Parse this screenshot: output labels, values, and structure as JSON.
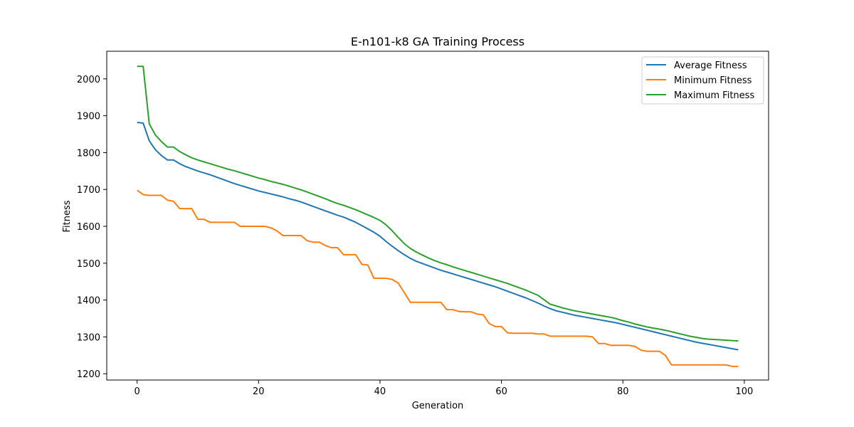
{
  "chart_data": {
    "type": "line",
    "title": "E-n101-k8 GA  Training Process",
    "xlabel": "Generation",
    "ylabel": "Fitness",
    "xlim": [
      -5,
      104
    ],
    "ylim": [
      1183,
      2075
    ],
    "xticks": [
      0,
      20,
      40,
      60,
      80,
      100
    ],
    "yticks": [
      1200,
      1300,
      1400,
      1500,
      1600,
      1700,
      1800,
      1900,
      2000
    ],
    "grid": false,
    "legend_position": "top-right",
    "x": [
      0,
      1,
      2,
      3,
      4,
      5,
      6,
      7,
      8,
      9,
      10,
      11,
      12,
      13,
      14,
      15,
      16,
      17,
      18,
      19,
      20,
      21,
      22,
      23,
      24,
      25,
      26,
      27,
      28,
      29,
      30,
      31,
      32,
      33,
      34,
      35,
      36,
      37,
      38,
      39,
      40,
      41,
      42,
      43,
      44,
      45,
      46,
      47,
      48,
      49,
      50,
      51,
      52,
      53,
      54,
      55,
      56,
      57,
      58,
      59,
      60,
      61,
      62,
      63,
      64,
      65,
      66,
      67,
      68,
      69,
      70,
      71,
      72,
      73,
      74,
      75,
      76,
      77,
      78,
      79,
      80,
      81,
      82,
      83,
      84,
      85,
      86,
      87,
      88,
      89,
      90,
      91,
      92,
      93,
      94,
      95,
      96,
      97,
      98,
      99
    ],
    "series": [
      {
        "name": "Average Fitness",
        "color": "#1f77b4",
        "values": [
          1882,
          1880,
          1832,
          1808,
          1792,
          1780,
          1780,
          1770,
          1762,
          1756,
          1750,
          1745,
          1740,
          1734,
          1728,
          1722,
          1716,
          1711,
          1706,
          1701,
          1696,
          1692,
          1688,
          1684,
          1680,
          1675,
          1671,
          1666,
          1660,
          1654,
          1648,
          1642,
          1636,
          1630,
          1625,
          1618,
          1611,
          1602,
          1593,
          1584,
          1573,
          1559,
          1546,
          1534,
          1523,
          1513,
          1505,
          1499,
          1493,
          1487,
          1481,
          1476,
          1471,
          1466,
          1461,
          1456,
          1451,
          1446,
          1441,
          1436,
          1430,
          1424,
          1418,
          1412,
          1406,
          1399,
          1392,
          1384,
          1377,
          1371,
          1367,
          1363,
          1359,
          1356,
          1353,
          1350,
          1347,
          1344,
          1341,
          1338,
          1334,
          1330,
          1326,
          1322,
          1318,
          1314,
          1310,
          1306,
          1302,
          1298,
          1294,
          1290,
          1286,
          1283,
          1280,
          1277,
          1274,
          1271,
          1268,
          1265
        ]
      },
      {
        "name": "Minimum Fitness",
        "color": "#ff7f0e",
        "values": [
          1698,
          1686,
          1684,
          1684,
          1684,
          1671,
          1668,
          1648,
          1648,
          1648,
          1619,
          1619,
          1611,
          1611,
          1611,
          1611,
          1611,
          1600,
          1600,
          1600,
          1600,
          1600,
          1596,
          1588,
          1575,
          1575,
          1575,
          1575,
          1561,
          1557,
          1557,
          1548,
          1542,
          1542,
          1523,
          1523,
          1523,
          1497,
          1495,
          1459,
          1459,
          1459,
          1456,
          1446,
          1420,
          1394,
          1394,
          1394,
          1394,
          1394,
          1394,
          1374,
          1374,
          1369,
          1368,
          1368,
          1362,
          1360,
          1336,
          1328,
          1328,
          1311,
          1310,
          1310,
          1310,
          1310,
          1308,
          1308,
          1302,
          1302,
          1302,
          1302,
          1302,
          1302,
          1302,
          1300,
          1282,
          1282,
          1277,
          1277,
          1277,
          1277,
          1274,
          1264,
          1261,
          1261,
          1261,
          1250,
          1224,
          1224,
          1224,
          1224,
          1224,
          1224,
          1224,
          1224,
          1224,
          1224,
          1220,
          1220
        ]
      },
      {
        "name": "Maximum Fitness",
        "color": "#2ca02c",
        "values": [
          2034,
          2034,
          1878,
          1848,
          1830,
          1815,
          1815,
          1803,
          1794,
          1786,
          1780,
          1775,
          1770,
          1765,
          1760,
          1755,
          1751,
          1746,
          1741,
          1736,
          1731,
          1727,
          1722,
          1718,
          1714,
          1709,
          1704,
          1699,
          1693,
          1687,
          1681,
          1675,
          1668,
          1662,
          1657,
          1651,
          1645,
          1638,
          1631,
          1624,
          1616,
          1604,
          1588,
          1570,
          1553,
          1540,
          1530,
          1522,
          1514,
          1507,
          1501,
          1496,
          1490,
          1485,
          1480,
          1475,
          1470,
          1465,
          1460,
          1455,
          1450,
          1445,
          1439,
          1433,
          1427,
          1420,
          1413,
          1401,
          1389,
          1384,
          1379,
          1375,
          1371,
          1368,
          1365,
          1362,
          1359,
          1356,
          1353,
          1349,
          1344,
          1340,
          1335,
          1331,
          1327,
          1324,
          1321,
          1318,
          1314,
          1310,
          1306,
          1302,
          1299,
          1296,
          1294,
          1293,
          1292,
          1291,
          1290,
          1289
        ]
      }
    ]
  }
}
